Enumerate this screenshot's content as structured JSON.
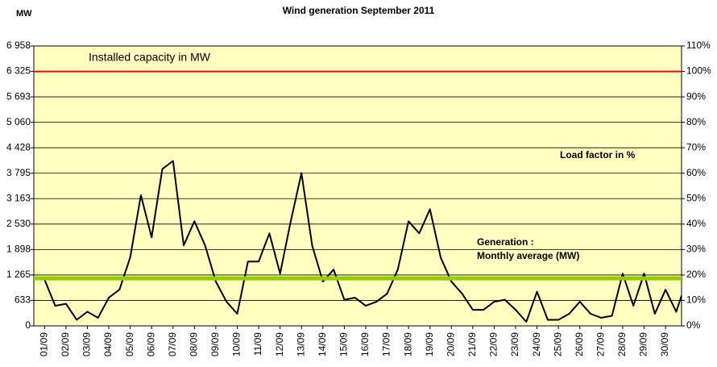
{
  "chart_data": {
    "type": "line",
    "title": "Wind generation  September 2011",
    "y_label": "MW",
    "plot_background": "#ffffc0",
    "grid": true,
    "xlim": [
      0.5,
      30.75
    ],
    "xticks": [
      {
        "value": 1,
        "label": "01/09"
      },
      {
        "value": 2,
        "label": "02/09"
      },
      {
        "value": 3,
        "label": "03/09"
      },
      {
        "value": 4,
        "label": "04/09"
      },
      {
        "value": 5,
        "label": "05/09"
      },
      {
        "value": 6,
        "label": "06/09"
      },
      {
        "value": 7,
        "label": "07/09"
      },
      {
        "value": 8,
        "label": "08/09"
      },
      {
        "value": 9,
        "label": "09/09"
      },
      {
        "value": 10,
        "label": "10/09"
      },
      {
        "value": 11,
        "label": "11/09"
      },
      {
        "value": 12,
        "label": "12/09"
      },
      {
        "value": 13,
        "label": "13/09"
      },
      {
        "value": 14,
        "label": "14/09"
      },
      {
        "value": 15,
        "label": "15/09"
      },
      {
        "value": 16,
        "label": "16/09"
      },
      {
        "value": 17,
        "label": "17/09"
      },
      {
        "value": 18,
        "label": "18/09"
      },
      {
        "value": 19,
        "label": "19/09"
      },
      {
        "value": 20,
        "label": "20/09"
      },
      {
        "value": 21,
        "label": "21/09"
      },
      {
        "value": 22,
        "label": "22/09"
      },
      {
        "value": 23,
        "label": "23/09"
      },
      {
        "value": 24,
        "label": "24/09"
      },
      {
        "value": 25,
        "label": "25/09"
      },
      {
        "value": 26,
        "label": "26/09"
      },
      {
        "value": 27,
        "label": "27/09"
      },
      {
        "value": 28,
        "label": "28/09"
      },
      {
        "value": 29,
        "label": "29/09"
      },
      {
        "value": 30,
        "label": "30/09"
      }
    ],
    "ylim": [
      0,
      6958
    ],
    "yticks": [
      0,
      633,
      {
        "value": 1265,
        "label": "1 265"
      },
      {
        "value": 1898,
        "label": "1 898"
      },
      {
        "value": 2530,
        "label": "2 530"
      },
      {
        "value": 3163,
        "label": "3 163"
      },
      {
        "value": 3795,
        "label": "3 795"
      },
      {
        "value": 4428,
        "label": "4 428"
      },
      {
        "value": 5060,
        "label": "5 060"
      },
      {
        "value": 5693,
        "label": "5 693"
      },
      {
        "value": 6325,
        "label": "6 325"
      },
      {
        "value": 6958,
        "label": "6 958"
      }
    ],
    "y2lim": [
      0,
      110
    ],
    "y2ticks": [
      {
        "value": 0,
        "label": "0%"
      },
      {
        "value": 10,
        "label": "10%"
      },
      {
        "value": 20,
        "label": "20%"
      },
      {
        "value": 30,
        "label": "30%"
      },
      {
        "value": 40,
        "label": "40%"
      },
      {
        "value": 50,
        "label": "50%"
      },
      {
        "value": 60,
        "label": "60%"
      },
      {
        "value": 70,
        "label": "70%"
      },
      {
        "value": 80,
        "label": "80%"
      },
      {
        "value": 90,
        "label": "90%"
      },
      {
        "value": 100,
        "label": "100%"
      },
      {
        "value": 110,
        "label": "110%"
      }
    ],
    "series": [
      {
        "color": "#000000",
        "x": [
          1,
          1.5,
          2,
          2.5,
          3,
          3.5,
          4,
          4.5,
          5,
          5.5,
          6,
          6.5,
          7,
          7.5,
          8,
          8.5,
          9,
          9.5,
          10,
          10.5,
          11,
          11.5,
          12,
          12.5,
          13,
          13.5,
          14,
          14.5,
          15,
          15.5,
          16,
          16.5,
          17,
          17.5,
          18,
          18.5,
          19,
          19.5,
          20,
          20.5,
          21,
          21.5,
          22,
          22.5,
          23,
          23.5,
          24,
          24.5,
          25,
          25.5,
          26,
          26.5,
          27,
          27.5,
          28,
          28.5,
          29,
          29.5,
          30,
          30.5,
          30.75
        ],
        "values": [
          1150,
          500,
          550,
          150,
          350,
          200,
          700,
          900,
          1700,
          3250,
          2200,
          3900,
          4100,
          2000,
          2600,
          2000,
          1100,
          600,
          300,
          1600,
          1600,
          2300,
          1300,
          2600,
          3800,
          2000,
          1100,
          1400,
          650,
          700,
          500,
          600,
          800,
          1400,
          2600,
          2300,
          2900,
          1700,
          1100,
          800,
          400,
          400,
          600,
          650,
          400,
          100,
          850,
          150,
          150,
          300,
          600,
          300,
          200,
          250,
          1300,
          500,
          1300,
          300,
          900,
          350,
          750
        ]
      }
    ],
    "capacity": {
      "label": "Installed capacity in MW",
      "value": 6325,
      "color": "#ff0000"
    },
    "average": {
      "label": [
        "Generation :",
        "Monthly average  (MW)"
      ],
      "value": 1180,
      "color": "#99cc00"
    },
    "y2_label": "Load factor in %"
  }
}
